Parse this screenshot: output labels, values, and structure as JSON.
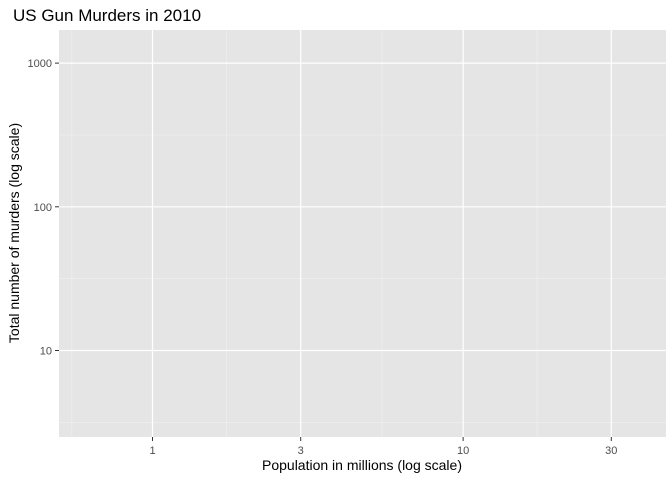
{
  "chart_data": {
    "type": "scatter",
    "title": "US Gun Murders in 2010",
    "xlabel": "Population in millions (log scale)",
    "ylabel": "Total number of murders (log scale)",
    "x_scale": "log10",
    "y_scale": "log10",
    "xlim": [
      0.5,
      45
    ],
    "ylim": [
      2.5,
      1700
    ],
    "x_ticks": [
      {
        "value": 1,
        "label": "1"
      },
      {
        "value": 3,
        "label": "3"
      },
      {
        "value": 10,
        "label": "10"
      },
      {
        "value": 30,
        "label": "30"
      }
    ],
    "y_ticks": [
      {
        "value": 10,
        "label": "10"
      },
      {
        "value": 100,
        "label": "100"
      },
      {
        "value": 1000,
        "label": "1000"
      }
    ],
    "x_minor_breaks": [
      0.55,
      1.73,
      5.48,
      17.3
    ],
    "y_minor_breaks": [
      3.16,
      31.6,
      316
    ],
    "grid": true,
    "legend": "none",
    "points": [],
    "colors": {
      "panel_background": "#e5e5e5",
      "grid_major": "#ffffff",
      "grid_minor": "#f2f2f2",
      "tick_text": "#4d4d4d",
      "tick_line": "#333333"
    }
  }
}
